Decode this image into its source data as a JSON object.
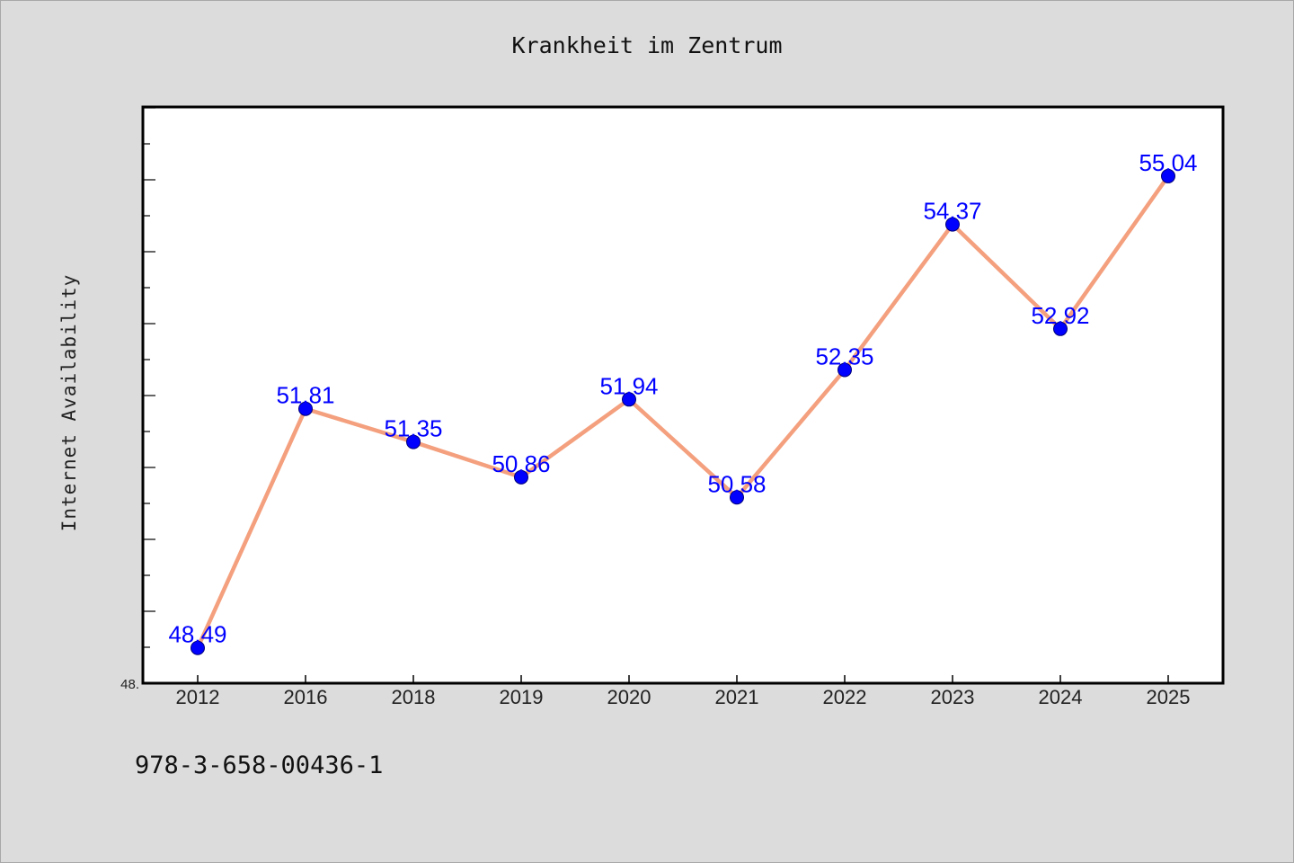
{
  "title": "Krankheit im Zentrum",
  "footer_text": "978-3-658-00436-1",
  "chart_data": {
    "type": "line",
    "title": "Krankheit im Zentrum",
    "xlabel": "",
    "ylabel": "Internet Availability",
    "categories": [
      "2012",
      "2016",
      "2018",
      "2019",
      "2020",
      "2021",
      "2022",
      "2023",
      "2024",
      "2025"
    ],
    "series": [
      {
        "values": [
          48.49,
          51.81,
          51.35,
          50.86,
          51.94,
          50.58,
          52.35,
          54.37,
          52.92,
          55.04
        ]
      }
    ],
    "ylim": [
      48.0,
      56.0
    ],
    "ytick_labels": [
      "48."
    ],
    "data_labels": [
      "48.49",
      "51.81",
      "51.35",
      "50.86",
      "51.94",
      "50.58",
      "52.35",
      "54.37",
      "52.92",
      "55.04"
    ],
    "grid": false,
    "legend": "none",
    "colors": {
      "line": "#f4a07e",
      "marker": "#0000ff",
      "labels": "#0000ff",
      "background": "#dcdcdc",
      "plot_background": "#ffffff"
    }
  }
}
